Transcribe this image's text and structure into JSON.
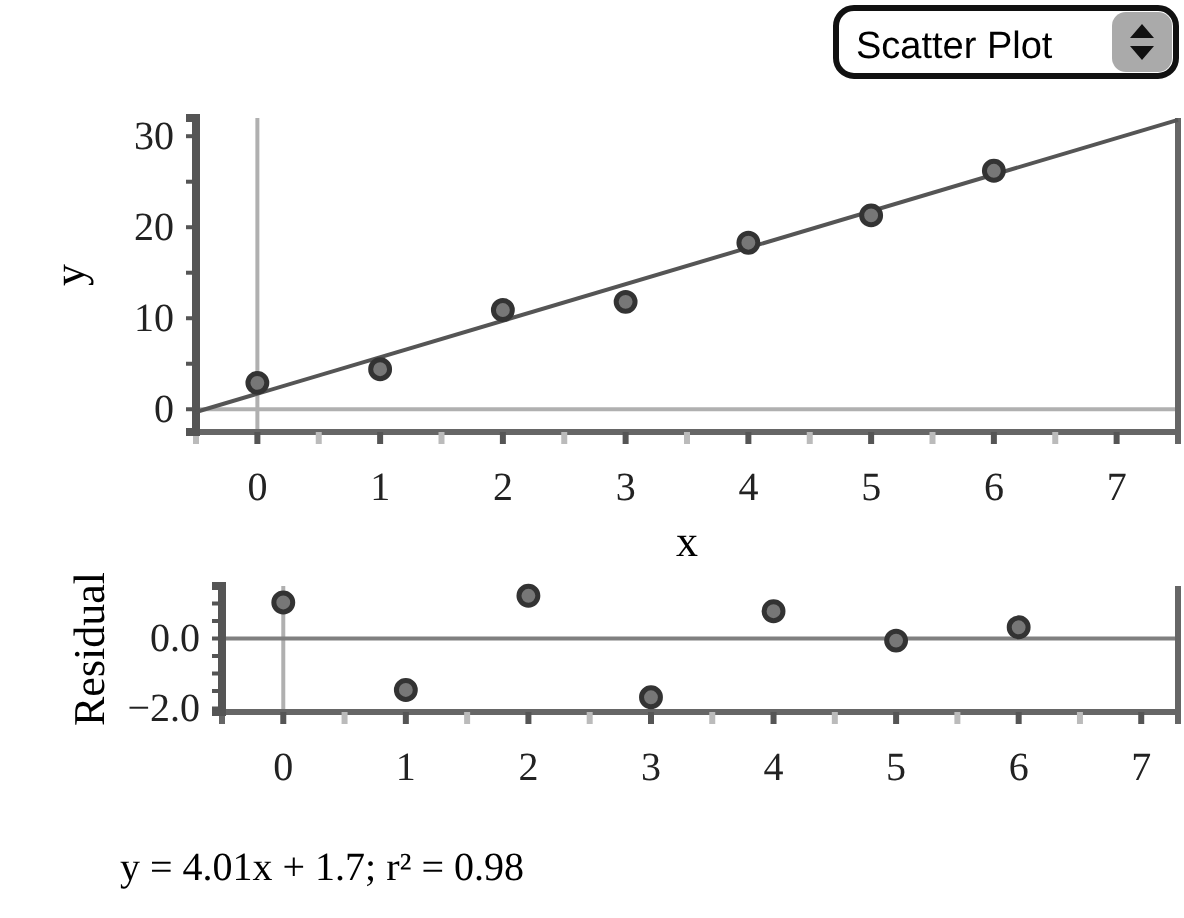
{
  "chart_data": [
    {
      "type": "scatter",
      "xlabel": "x",
      "ylabel": "y",
      "xlim": [
        -0.5,
        7.5
      ],
      "xticks": [
        {
          "value": -0.5,
          "label": null
        },
        0,
        {
          "value": 0.5,
          "label": null
        },
        1,
        {
          "value": 1.5,
          "label": null
        },
        2,
        {
          "value": 2.5,
          "label": null
        },
        3,
        {
          "value": 3.5,
          "label": null
        },
        4,
        {
          "value": 4.5,
          "label": null
        },
        5,
        {
          "value": 5.5,
          "label": null
        },
        6,
        {
          "value": 6.5,
          "label": null
        },
        7
      ],
      "ylim": [
        -2.5,
        32
      ],
      "yticks": [
        0,
        {
          "value": 5,
          "label": null
        },
        10,
        {
          "value": 15,
          "label": null
        },
        20,
        {
          "value": 25,
          "label": null
        },
        30
      ],
      "ref_lines": [
        {
          "axis": "x",
          "value": 0,
          "color": "#b0b0b0"
        },
        {
          "axis": "y",
          "value": 0,
          "color": "#b0b0b0"
        }
      ],
      "annotations": [
        "Scatter Plot"
      ],
      "series": [
        {
          "marker": "circle",
          "color": "#333333",
          "x": [
            0,
            1,
            2,
            3,
            4,
            5,
            6
          ],
          "values": [
            2.9,
            4.4,
            10.9,
            11.8,
            18.3,
            21.3,
            26.2
          ]
        },
        {
          "type": "line",
          "color": "#555555",
          "x": [
            -0.5,
            7.5
          ],
          "values": [
            -0.3,
            31.8
          ]
        }
      ]
    },
    {
      "type": "scatter",
      "ylabel": "Residual",
      "marker": "circle",
      "xlim": [
        -0.5,
        7.3
      ],
      "xticks": [
        0,
        {
          "value": 0.5,
          "label": null
        },
        1,
        {
          "value": 1.5,
          "label": null
        },
        2,
        {
          "value": 2.5,
          "label": null
        },
        3,
        {
          "value": 3.5,
          "label": null
        },
        4,
        {
          "value": 4.5,
          "label": null
        },
        5,
        {
          "value": 5.5,
          "label": null
        },
        6,
        {
          "value": 6.5,
          "label": null
        },
        7
      ],
      "ylim": [
        -2.1,
        1.5
      ],
      "yticks": [
        {
          "value": -2,
          "label": "−2.0"
        },
        {
          "value": -1.5,
          "label": null
        },
        {
          "value": -1,
          "label": null
        },
        {
          "value": -0.5,
          "label": null
        },
        {
          "value": 0,
          "label": "0.0"
        },
        {
          "value": 0.5,
          "label": null
        },
        {
          "value": 1,
          "label": null
        }
      ],
      "ref_lines": [
        {
          "axis": "x",
          "value": 0,
          "color": "#b0b0b0"
        },
        {
          "axis": "y",
          "value": 0,
          "color": "#808080"
        }
      ],
      "annotations": [
        "y = 4.01x + 1.7; r² = 0.98"
      ],
      "series": [
        {
          "color": "#333333",
          "x": [
            0,
            1,
            2,
            3,
            4,
            5,
            6
          ],
          "values": [
            1.03,
            -1.47,
            1.22,
            -1.68,
            0.78,
            -0.06,
            0.32
          ]
        }
      ]
    }
  ]
}
